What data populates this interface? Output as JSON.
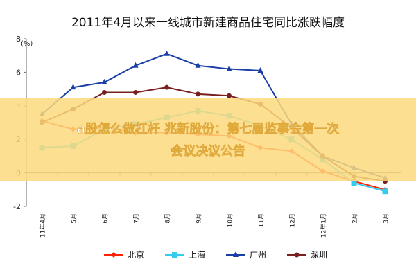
{
  "chart_data": {
    "type": "line",
    "title": "2011年4月以来一线城市新建商品住宅同比涨跌幅度",
    "ylabel": "(%)",
    "ylim": [
      -2,
      8
    ],
    "yticks": [
      -2,
      0,
      2,
      4,
      6,
      8
    ],
    "grid": false,
    "legend_position": "bottom",
    "categories": [
      "11年4月",
      "5月",
      "6月",
      "7月",
      "8月",
      "9月",
      "10月",
      "11月",
      "12月",
      "12年1月",
      "2月",
      "3月"
    ],
    "series": [
      {
        "name": "北京",
        "color": "#ff2200",
        "marker": "diamond",
        "values": [
          3.1,
          2.6,
          2.7,
          2.4,
          2.4,
          2.3,
          2.2,
          1.5,
          1.3,
          0.1,
          -0.5,
          -1.0
        ]
      },
      {
        "name": "上海",
        "color": "#33ccee",
        "marker": "square",
        "values": [
          1.5,
          1.6,
          2.6,
          2.9,
          3.3,
          3.7,
          3.4,
          2.8,
          2.0,
          0.8,
          -0.6,
          -1.1
        ]
      },
      {
        "name": "广州",
        "color": "#1a3ea8",
        "marker": "triangle",
        "values": [
          3.5,
          5.1,
          5.4,
          6.4,
          7.1,
          6.4,
          6.2,
          6.1,
          2.9,
          1.0,
          0.3,
          -0.3
        ]
      },
      {
        "name": "深圳",
        "color": "#7a1f1f",
        "marker": "circle",
        "values": [
          3.0,
          3.8,
          4.8,
          4.8,
          5.1,
          4.7,
          4.6,
          4.1,
          2.7,
          1.0,
          -0.2,
          -0.5
        ]
      }
    ]
  },
  "overlay": {
    "banner_text_line1": "a股怎么做杠杆 兆新股份：第七届监事会第一次",
    "banner_text_line2": "会议决议公告",
    "banner_color": "#fcd97c"
  }
}
